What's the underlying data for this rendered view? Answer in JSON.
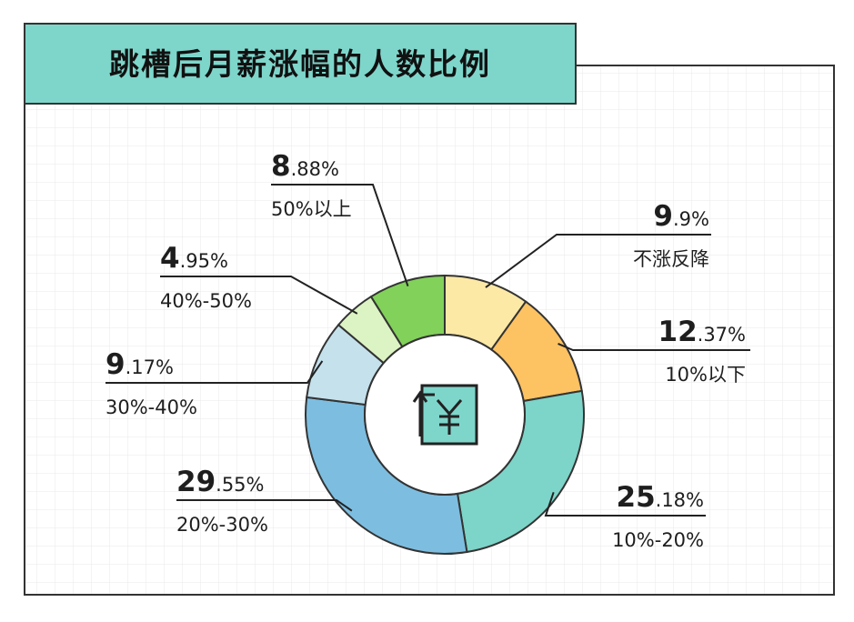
{
  "chart_data": {
    "type": "pie",
    "style": "donut",
    "title": "跳槽后月薪涨幅的人数比例",
    "center_icon": "yuan-up-arrow-icon",
    "slices": [
      {
        "label": "不涨反降",
        "pct_int": "9",
        "pct_dec": ".9%",
        "value": 9.9,
        "color": "#fde9a6"
      },
      {
        "label": "10%以下",
        "pct_int": "12",
        "pct_dec": ".37%",
        "value": 12.37,
        "color": "#fdc262"
      },
      {
        "label": "10%-20%",
        "pct_int": "25",
        "pct_dec": ".18%",
        "value": 25.18,
        "color": "#7dd4c8"
      },
      {
        "label": "20%-30%",
        "pct_int": "29",
        "pct_dec": ".55%",
        "value": 29.55,
        "color": "#7dbee0"
      },
      {
        "label": "30%-40%",
        "pct_int": "9",
        "pct_dec": ".17%",
        "value": 9.17,
        "color": "#c5e1ec"
      },
      {
        "label": "40%-50%",
        "pct_int": "4",
        "pct_dec": ".95%",
        "value": 4.95,
        "color": "#dcf3c3"
      },
      {
        "label": "50%以上",
        "pct_int": "8",
        "pct_dec": ".88%",
        "value": 8.88,
        "color": "#82d15a"
      }
    ]
  },
  "colors": {
    "title_bg": "#7ed6cb",
    "grid": "#e9e9e9",
    "border": "#333333"
  }
}
